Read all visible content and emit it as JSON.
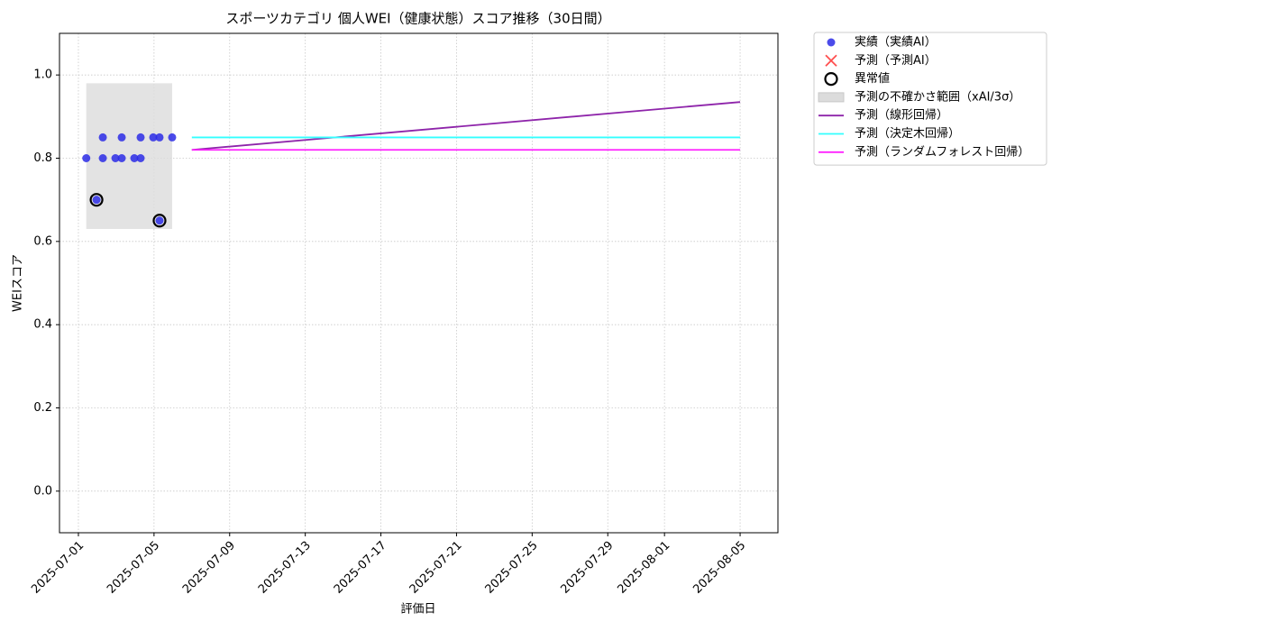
{
  "chart_data": {
    "type": "scatter",
    "title": "スポーツカテゴリ 個人WEI（健康状態）スコア推移（30日間）",
    "xlabel": "評価日",
    "ylabel": "WEIスコア",
    "xlim": [
      "2025-06-30",
      "2025-08-07"
    ],
    "xticks": [
      "2025-07-01",
      "2025-07-05",
      "2025-07-09",
      "2025-07-13",
      "2025-07-17",
      "2025-07-21",
      "2025-07-25",
      "2025-07-29",
      "2025-08-01",
      "2025-08-05"
    ],
    "ylim": [
      -0.1,
      1.1
    ],
    "yticks": [
      {
        "value": 0,
        "label": "0.0"
      },
      0.2,
      0.4,
      0.6,
      0.8,
      {
        "value": 1,
        "label": "1.0"
      }
    ],
    "grid": true,
    "legend": "right",
    "series": [
      {
        "name": "実績（実績AI）",
        "kind": "scatter",
        "color": "#2b2be6",
        "x": [
          "2025-07-01 10:00",
          "2025-07-01 23:00",
          "2025-07-02 07:00",
          "2025-07-02 07:00",
          "2025-07-02 23:00",
          "2025-07-03 07:00",
          "2025-07-03 07:00",
          "2025-07-03 23:00",
          "2025-07-04 07:00",
          "2025-07-04 07:00",
          "2025-07-04 23:00",
          "2025-07-05 07:00",
          "2025-07-05 07:00",
          "2025-07-05 23:00"
        ],
        "values": [
          0.8,
          0.7,
          0.85,
          0.8,
          0.8,
          0.85,
          0.8,
          0.8,
          0.85,
          0.8,
          0.85,
          0.85,
          0.65,
          0.85
        ]
      },
      {
        "name": "予測（予測AI）",
        "kind": "cross",
        "color": "#ff3030",
        "x": [],
        "values": []
      },
      {
        "name": "異常値",
        "kind": "ring",
        "color": "#000000",
        "x": [
          "2025-07-01 23:00",
          "2025-07-05 07:00"
        ],
        "values": [
          0.7,
          0.65
        ]
      },
      {
        "name": "予測の不確かさ範囲（xAI/3σ）",
        "kind": "band",
        "color": "#dcdcdc",
        "x": [
          "2025-07-01 10:00",
          "2025-07-05 23:00"
        ],
        "low": [
          0.63,
          0.63
        ],
        "high": [
          0.98,
          0.98
        ]
      },
      {
        "name": "予測（線形回帰）",
        "kind": "line",
        "color": "#8e24aa",
        "x": [
          "2025-07-07",
          "2025-08-05"
        ],
        "values": [
          0.82,
          0.935
        ]
      },
      {
        "name": "予測（決定木回帰）",
        "kind": "line",
        "color": "#33ffff",
        "x": [
          "2025-07-07",
          "2025-08-05"
        ],
        "values": [
          0.85,
          0.85
        ]
      },
      {
        "name": "予測（ランダムフォレスト回帰）",
        "kind": "line",
        "color": "#ff22ff",
        "x": [
          "2025-07-07",
          "2025-08-05"
        ],
        "values": [
          0.82,
          0.82
        ]
      }
    ]
  }
}
